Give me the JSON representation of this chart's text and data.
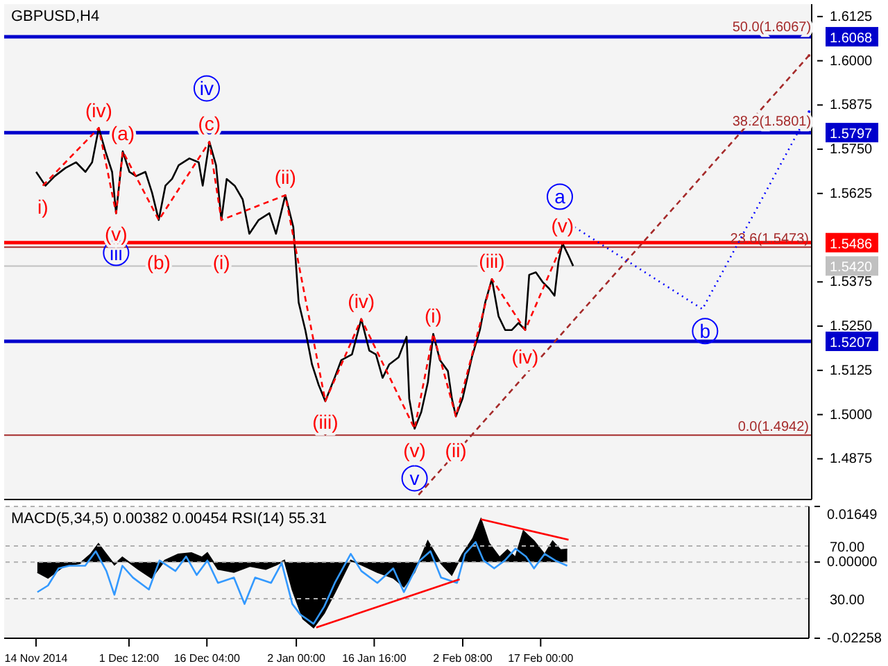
{
  "chart_data": [
    {
      "type": "line",
      "title": "GBPUSD,H4",
      "xlim": [
        "2014-11-08",
        "2015-04-08T12:00"
      ],
      "ylim": [
        1.476,
        1.616
      ],
      "tick_labels": "y",
      "yticks": [
        {
          "value": 1.4875,
          "label": "1.4875"
        },
        {
          "value": 1.5,
          "label": "1.5000"
        },
        {
          "value": 1.5125,
          "label": "1.5125"
        },
        {
          "value": 1.5207,
          "label": "1.5207"
        },
        {
          "value": 1.525,
          "label": "1.5250"
        },
        {
          "value": 1.5375,
          "label": "1.5375"
        },
        {
          "value": 1.542,
          "label": "1.5420"
        },
        {
          "value": 1.5486,
          "label": "1.5486"
        },
        {
          "value": 1.5625,
          "label": "1.5625"
        },
        {
          "value": 1.575,
          "label": "1.5750"
        },
        {
          "value": 1.5797,
          "label": "1.5797"
        },
        {
          "value": 1.5875,
          "label": "1.5875"
        },
        {
          "value": 1.6,
          "label": "1.6000"
        },
        {
          "value": 1.6068,
          "label": "1.6068"
        },
        {
          "value": 1.6125,
          "label": "1.6125"
        }
      ],
      "ref_lines": [
        {
          "axis": "y",
          "value": 1.6068,
          "color": "#0000cc"
        },
        {
          "axis": "y",
          "value": 1.5797,
          "color": "#0000cc"
        },
        {
          "axis": "y",
          "value": 1.5486,
          "color": "#ff0000"
        },
        {
          "axis": "y",
          "value": 1.5207,
          "color": "#0000cc"
        },
        {
          "axis": "y",
          "value": 1.542,
          "color": "#c0c0c0"
        },
        {
          "axis": "y",
          "value": 1.5473,
          "label": "23.6(1.5473)",
          "color": "#a52a2a"
        },
        {
          "axis": "y",
          "value": 1.4942,
          "label": "0.0(1.4942)",
          "color": "#a52a2a"
        }
      ],
      "annotations": [
        {
          "text": "50.0(1.6067)",
          "x": "2015-04-01",
          "y": 1.6067
        },
        {
          "text": "38.2(1.5801)",
          "x": "2015-04-01",
          "y": 1.5801
        },
        {
          "text": "i)",
          "x": "2014-11-15T06:00",
          "y": 1.5647
        },
        {
          "text": "(iv)",
          "x": "2014-11-25T18:00",
          "y": 1.581
        },
        {
          "text": "(v)",
          "x": "2014-11-29T00:00",
          "y": 1.5569
        },
        {
          "text": "(a)",
          "x": "2014-11-30T06:00",
          "y": 1.5744
        },
        {
          "text": "(b)",
          "x": "2014-12-07T00:00",
          "y": 1.555
        },
        {
          "text": "(c)",
          "x": "2014-12-16T12:00",
          "y": 1.5771
        },
        {
          "text": "(i)",
          "x": "2014-12-18T18:00",
          "y": 1.555
        },
        {
          "text": "(ii)",
          "x": "2014-12-30T18:00",
          "y": 1.562
        },
        {
          "text": "(iii)",
          "x": "2015-01-07T06:00",
          "y": 1.5038
        },
        {
          "text": "(iv)",
          "x": "2015-01-14T00:00",
          "y": 1.527
        },
        {
          "text": "(v)",
          "x": "2015-01-24T00:00",
          "y": 1.496
        },
        {
          "text": "(i)",
          "x": "2015-01-27T12:00",
          "y": 1.5228
        },
        {
          "text": "(ii)",
          "x": "2015-01-31T18:00",
          "y": 1.4995
        },
        {
          "text": "(iii)",
          "x": "2015-02-07T12:00",
          "y": 1.5383
        },
        {
          "text": "(iv)",
          "x": "2015-02-13T18:00",
          "y": 1.5239
        },
        {
          "text": "(v)",
          "x": "2015-02-20T18:00",
          "y": 1.5484
        }
      ],
      "series": [
        {
          "color": "#000000",
          "x": [
            "2014-11-14T00:00",
            "2014-11-15T18:00",
            "2014-11-17T12:00",
            "2014-11-19T12:00",
            "2014-11-21T12:00",
            "2014-11-23T06:00",
            "2014-11-24T12:00",
            "2014-11-25T18:00",
            "2014-11-27T00:00",
            "2014-11-28T06:00",
            "2014-11-29T00:00",
            "2014-11-30T06:00",
            "2014-12-01T12:00",
            "2014-12-02T18:00",
            "2014-12-04T12:00",
            "2014-12-05T18:00",
            "2014-12-07T00:00",
            "2014-12-08T06:00",
            "2014-12-09T12:00",
            "2014-12-10T18:00",
            "2014-12-12T18:00",
            "2014-12-14T12:00",
            "2014-12-15T06:00",
            "2014-12-16T12:00",
            "2014-12-17T18:00",
            "2014-12-18T18:00",
            "2014-12-19T18:00",
            "2014-12-21T06:00",
            "2014-12-22T18:00",
            "2014-12-24T00:00",
            "2014-12-25T18:00",
            "2014-12-27T18:00",
            "2014-12-29T00:00",
            "2014-12-30T18:00",
            "2015-01-01T06:00",
            "2015-01-02T06:00",
            "2015-01-03T12:00",
            "2015-01-04T18:00",
            "2015-01-06T00:00",
            "2015-01-07T06:00",
            "2015-01-09T00:00",
            "2015-01-10T06:00",
            "2015-01-12T06:00",
            "2015-01-14T00:00",
            "2015-01-15T12:00",
            "2015-01-16T18:00",
            "2015-01-18T00:00",
            "2015-01-19T06:00",
            "2015-01-21T00:00",
            "2015-01-22T12:00",
            "2015-01-23T00:00",
            "2015-01-24T00:00",
            "2015-01-25T06:00",
            "2015-01-26T12:00",
            "2015-01-27T12:00",
            "2015-01-28T18:00",
            "2015-01-30T06:00",
            "2015-01-31T00:00",
            "2015-01-31T18:00",
            "2015-02-02T00:00",
            "2015-02-03T18:00",
            "2015-02-05T06:00",
            "2015-02-06T06:00",
            "2015-02-07T12:00",
            "2015-02-08T18:00",
            "2015-02-10T00:00",
            "2015-02-11T06:00",
            "2015-02-12T12:00",
            "2015-02-13T18:00",
            "2015-02-14T12:00",
            "2015-02-15T18:00",
            "2015-02-17T00:00",
            "2015-02-18T06:00",
            "2015-02-19T06:00",
            "2015-02-20T00:00",
            "2015-02-20T18:00",
            "2015-02-21T18:00",
            "2015-02-22T18:00"
          ],
          "values": [
            1.5686,
            1.5647,
            1.5674,
            1.5697,
            1.5713,
            1.5686,
            1.5713,
            1.581,
            1.5744,
            1.5686,
            1.5569,
            1.5744,
            1.5686,
            1.5674,
            1.5686,
            1.5627,
            1.555,
            1.5647,
            1.5666,
            1.5705,
            1.5724,
            1.5713,
            1.5647,
            1.5771,
            1.5705,
            1.555,
            1.5666,
            1.5647,
            1.5608,
            1.5511,
            1.555,
            1.5569,
            1.5511,
            1.562,
            1.553,
            1.5317,
            1.5239,
            1.5142,
            1.5084,
            1.5038,
            1.5104,
            1.5154,
            1.517,
            1.527,
            1.5181,
            1.517,
            1.5104,
            1.5142,
            1.5162,
            1.522,
            1.5045,
            1.496,
            1.5007,
            1.5092,
            1.5228,
            1.5154,
            1.5123,
            1.5045,
            1.4995,
            1.5045,
            1.5162,
            1.5239,
            1.5317,
            1.5383,
            1.5278,
            1.5239,
            1.5239,
            1.5259,
            1.5239,
            1.5395,
            1.5402,
            1.5375,
            1.5356,
            1.5336,
            1.5433,
            1.5484,
            1.5453,
            1.542
          ]
        },
        {
          "color": "#ff0000",
          "line_style": "dashed",
          "x": [
            "2014-11-15T06:00",
            "2014-11-25T18:00",
            "2014-11-29T00:00",
            "2014-11-30T06:00",
            "2014-12-07T00:00",
            "2014-12-16T12:00",
            "2014-12-18T18:00",
            "2014-12-30T18:00",
            "2015-01-07T06:00",
            "2015-01-14T00:00",
            "2015-01-24T00:00",
            "2015-01-27T12:00",
            "2015-01-31T18:00",
            "2015-02-07T12:00",
            "2015-02-13T18:00",
            "2015-02-20T18:00"
          ],
          "values": [
            1.5647,
            1.581,
            1.5569,
            1.5744,
            1.555,
            1.5771,
            1.555,
            1.562,
            1.5038,
            1.527,
            1.496,
            1.5228,
            1.4995,
            1.5383,
            1.5239,
            1.5484
          ]
        },
        {
          "color": "#a52a2a",
          "line_style": "dashed",
          "x": [
            "2015-01-24T18:00",
            "2015-04-08T00:00"
          ],
          "values": [
            1.4773,
            1.6015
          ]
        },
        {
          "color": "#0000ff",
          "line_style": "dotted",
          "x": [
            "2015-02-23T00:00",
            "2015-03-19T00:00",
            "2015-04-08T00:00"
          ],
          "values": [
            1.553,
            1.5298,
            1.5856
          ]
        },
        {
          "type": "scatter",
          "color": "#0000ff",
          "marker": "circle",
          "x": [
            "2014-12-16T00:00",
            "2014-11-29T00:00",
            "2015-01-24T00:00",
            "2015-02-20T06:00",
            "2015-03-19T12:00"
          ],
          "values": [
            1.5922,
            1.5457,
            1.482,
            1.5616,
            1.5236
          ],
          "value_labels": [
            "iv",
            "iii",
            "v",
            "a",
            "b"
          ]
        }
      ]
    },
    {
      "type": "area",
      "title": "MACD(5,34,5) 0.00382 0.00454 RSI(14) 55.31",
      "xlim": [
        "2014-11-08",
        "2015-04-08T12:00"
      ],
      "ylim": [
        -0.02258,
        0.01649
      ],
      "yticks": [
        -0.02258,
        {
          "value": 0,
          "label": "0.00000"
        },
        0.01649
      ],
      "y2lim": [
        0,
        100
      ],
      "y2ticks": [
        {
          "value": 30,
          "label": "30.00"
        },
        {
          "value": 70,
          "label": "70.00"
        }
      ],
      "grid": true,
      "xticks": [
        {
          "value": "2014-11-14",
          "label": "14 Nov 2014"
        },
        {
          "value": "2014-12-01T12:00",
          "label": "1 Dec 12:00"
        },
        {
          "value": "2014-12-16T04:00",
          "label": "16 Dec 04:00"
        },
        {
          "value": "2015-01-02",
          "label": "2 Jan 00:00"
        },
        {
          "value": "2015-01-16T16:00",
          "label": "16 Jan 16:00"
        },
        {
          "value": "2015-02-02T08:00",
          "label": "2 Feb 08:00"
        },
        {
          "value": "2015-02-17",
          "label": "17 Feb 00:00"
        }
      ],
      "series": [
        {
          "color": "#000000",
          "x": [
            "2014-11-14T06:00",
            "2014-11-16T06:00",
            "2014-11-19T06:00",
            "2014-11-22T06:00",
            "2014-11-24T06:00",
            "2014-11-25T18:00",
            "2014-11-27T06:00",
            "2014-11-28T18:00",
            "2014-11-30T06:00",
            "2014-12-03T06:00",
            "2014-12-05T18:00",
            "2014-12-08T06:00",
            "2014-12-10T18:00",
            "2014-12-13T06:00",
            "2014-12-15T06:00",
            "2014-12-16T06:00",
            "2014-12-18T06:00",
            "2014-12-21T06:00",
            "2014-12-24T06:00",
            "2014-12-27T06:00",
            "2014-12-29T06:00",
            "2014-12-30T18:00",
            "2015-01-01T06:00",
            "2015-01-03T06:00",
            "2015-01-05T06:00",
            "2015-01-07T06:00",
            "2015-01-09T06:00",
            "2015-01-12T06:00",
            "2015-01-14T06:00",
            "2015-01-17T06:00",
            "2015-01-20T06:00",
            "2015-01-22T06:00",
            "2015-01-24T06:00",
            "2015-01-26T18:00",
            "2015-01-29T06:00",
            "2015-01-31T06:00",
            "2015-02-02T06:00",
            "2015-02-04T06:00",
            "2015-02-05T18:00",
            "2015-02-07T06:00",
            "2015-02-09T06:00",
            "2015-02-10T18:00",
            "2015-02-12T06:00",
            "2015-02-13T18:00",
            "2015-02-15T18:00",
            "2015-02-17T18:00",
            "2015-02-19T06:00",
            "2015-02-20T18:00",
            "2015-02-22T00:00"
          ],
          "values": [
            -0.003,
            -0.0047,
            -0.0012,
            -0.0004,
            0.0023,
            0.0054,
            0.0023,
            -0.0008,
            0.0014,
            -0.0021,
            -0.0047,
            0.0005,
            0.0023,
            0.0027,
            0.0014,
            0.0027,
            -0.0021,
            -0.003,
            -0.0012,
            -0.0021,
            -0.0008,
            0.0005,
            -0.0082,
            -0.0168,
            -0.0194,
            -0.0151,
            -0.009,
            0.0005,
            -0.0008,
            -0.003,
            -0.0047,
            -0.0073,
            -0.003,
            0.0062,
            -0.0004,
            -0.0038,
            0.0023,
            0.007,
            0.0127,
            0.0057,
            0.0014,
            0.0036,
            0.0014,
            0.0092,
            0.0062,
            0.0023,
            0.0062,
            0.0036,
            0.0038
          ]
        },
        {
          "type": "line",
          "axis": "y2",
          "color": "#3399ff",
          "x": [
            "2014-11-14T06:00",
            "2014-11-16T06:00",
            "2014-11-18T06:00",
            "2014-11-20T06:00",
            "2014-11-23T06:00",
            "2014-11-25T06:00",
            "2014-11-27T06:00",
            "2014-11-28T18:00",
            "2014-11-30T06:00",
            "2014-12-02T06:00",
            "2014-12-05T06:00",
            "2014-12-07T06:00",
            "2014-12-10T06:00",
            "2014-12-12T06:00",
            "2014-12-14T06:00",
            "2014-12-16T06:00",
            "2014-12-18T06:00",
            "2014-12-21T06:00",
            "2014-12-23T06:00",
            "2014-12-25T06:00",
            "2014-12-28T06:00",
            "2014-12-30T06:00",
            "2015-01-01T06:00",
            "2015-01-02T18:00",
            "2015-01-05T06:00",
            "2015-01-07T06:00",
            "2015-01-09T06:00",
            "2015-01-12T06:00",
            "2015-01-14T06:00",
            "2015-01-17T06:00",
            "2015-01-20T06:00",
            "2015-01-22T06:00",
            "2015-01-25T06:00",
            "2015-01-27T06:00",
            "2015-01-29T06:00",
            "2015-02-01T06:00",
            "2015-02-02T18:00",
            "2015-02-04T18:00",
            "2015-02-06T06:00",
            "2015-02-08T06:00",
            "2015-02-10T06:00",
            "2015-02-12T06:00",
            "2015-02-14T06:00",
            "2015-02-15T18:00",
            "2015-02-17T18:00",
            "2015-02-19T18:00",
            "2015-02-22T00:00"
          ],
          "values": [
            35,
            40,
            53,
            55,
            55,
            66,
            51,
            33,
            55,
            46,
            37,
            59,
            51,
            62,
            48,
            59,
            42,
            46,
            26,
            46,
            42,
            57,
            26,
            18,
            11,
            24,
            42,
            64,
            51,
            42,
            53,
            35,
            59,
            66,
            46,
            42,
            64,
            73,
            59,
            53,
            59,
            68,
            62,
            53,
            64,
            59,
            55
          ]
        },
        {
          "type": "line",
          "color": "#ff0000",
          "x": [
            "2015-01-05T18:00",
            "2015-02-01T18:00"
          ],
          "values": [
            -0.0194,
            -0.0051
          ]
        },
        {
          "type": "line",
          "color": "#ff0000",
          "x": [
            "2015-02-05T18:00",
            "2015-02-22T06:00"
          ],
          "values": [
            0.0127,
            0.0066
          ]
        }
      ]
    }
  ]
}
